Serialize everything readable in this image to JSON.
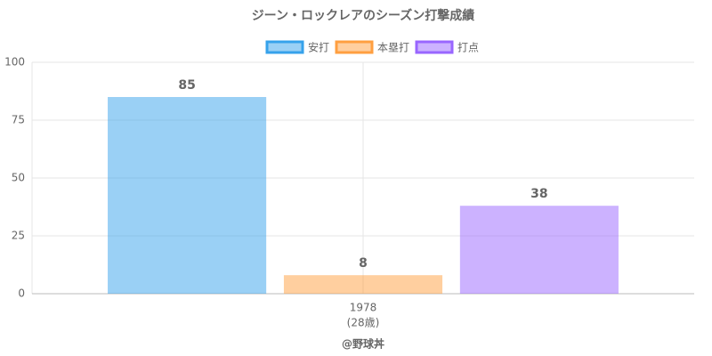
{
  "chart_data": {
    "type": "bar",
    "title": "ジーン・ロックレアのシーズン打撃成績",
    "categories": [
      "1978"
    ],
    "category_sublabels": [
      "(28歳)"
    ],
    "series": [
      {
        "name": "安打",
        "color": "#36a2eb",
        "values": [
          85
        ]
      },
      {
        "name": "本塁打",
        "color": "#ff9f40",
        "values": [
          8
        ]
      },
      {
        "name": "打点",
        "color": "#9966ff",
        "values": [
          38
        ]
      }
    ],
    "ylim": [
      0,
      100
    ],
    "yticks": [
      0,
      25,
      50,
      75,
      100
    ],
    "grid": true,
    "legend": "top",
    "credit": "@野球丼"
  }
}
